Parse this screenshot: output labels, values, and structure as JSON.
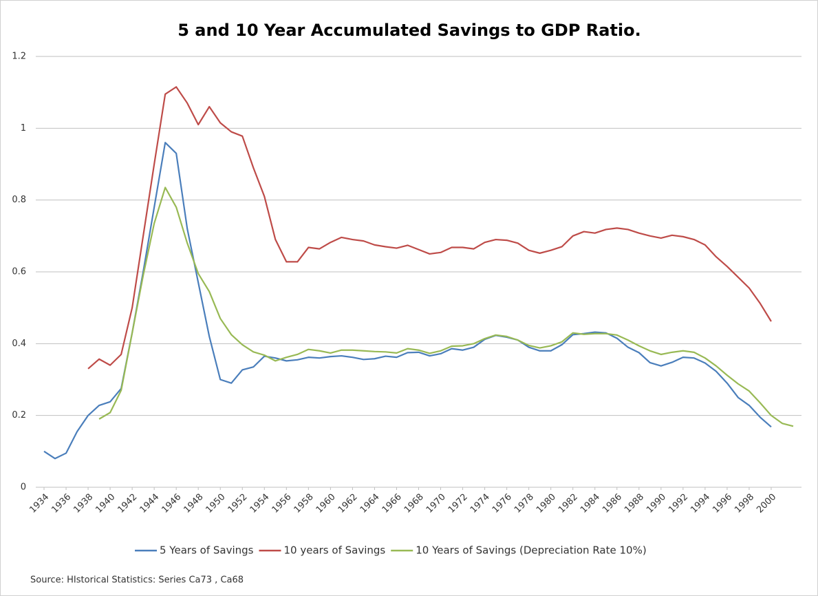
{
  "chart_data": {
    "type": "line",
    "title": "5 and 10 Year Accumulated Savings to GDP Ratio.",
    "source": "Source: HIstorical Statistics: Series Ca73 , Ca68",
    "x": [
      1934,
      1935,
      1936,
      1937,
      1938,
      1939,
      1940,
      1941,
      1942,
      1943,
      1944,
      1945,
      1946,
      1947,
      1948,
      1949,
      1950,
      1951,
      1952,
      1953,
      1954,
      1955,
      1956,
      1957,
      1958,
      1959,
      1960,
      1961,
      1962,
      1963,
      1964,
      1965,
      1966,
      1967,
      1968,
      1969,
      1970,
      1971,
      1972,
      1973,
      1974,
      1975,
      1976,
      1977,
      1978,
      1979,
      1980,
      1981,
      1982,
      1983,
      1984,
      1985,
      1986,
      1987,
      1988,
      1989,
      1990,
      1991,
      1992,
      1993,
      1994,
      1995,
      1996,
      1997,
      1998,
      1999,
      2000,
      2001,
      2002
    ],
    "xlim": [
      1933.25,
      2002.75
    ],
    "xticks": [
      1934,
      1936,
      1938,
      1940,
      1942,
      1944,
      1946,
      1948,
      1950,
      1952,
      1954,
      1956,
      1958,
      1960,
      1962,
      1964,
      1966,
      1968,
      1970,
      1972,
      1974,
      1976,
      1978,
      1980,
      1982,
      1984,
      1986,
      1988,
      1990,
      1992,
      1994,
      1996,
      1998,
      2000
    ],
    "ylim": [
      0,
      1.2
    ],
    "yticks": [
      0,
      0.2,
      0.4,
      0.6,
      0.8,
      1,
      1.2
    ],
    "grid": true,
    "legend": "bottom",
    "series": [
      {
        "name": "5 Years of Savings",
        "color": "#4a7ebb",
        "values": [
          0.1,
          0.08,
          0.095,
          0.155,
          0.2,
          0.228,
          0.238,
          0.275,
          0.43,
          0.6,
          0.78,
          0.96,
          0.93,
          0.72,
          0.57,
          0.42,
          0.3,
          0.29,
          0.327,
          0.335,
          0.365,
          0.36,
          0.352,
          0.355,
          0.362,
          0.36,
          0.364,
          0.366,
          0.362,
          0.356,
          0.358,
          0.365,
          0.362,
          0.375,
          0.376,
          0.366,
          0.372,
          0.386,
          0.382,
          0.39,
          0.412,
          0.423,
          0.418,
          0.41,
          0.39,
          0.38,
          0.38,
          0.397,
          0.425,
          0.428,
          0.432,
          0.43,
          0.415,
          0.39,
          0.375,
          0.347,
          0.338,
          0.348,
          0.362,
          0.36,
          0.346,
          0.323,
          0.29,
          0.25,
          0.228,
          0.195,
          0.168,
          null,
          null
        ]
      },
      {
        "name": "10 years of Savings",
        "color": "#be4b48",
        "values": [
          null,
          null,
          null,
          null,
          0.33,
          0.357,
          0.34,
          0.37,
          0.5,
          0.7,
          0.9,
          1.095,
          1.115,
          1.07,
          1.01,
          1.06,
          1.015,
          0.99,
          0.978,
          0.89,
          0.81,
          0.69,
          0.628,
          0.628,
          0.668,
          0.664,
          0.682,
          0.696,
          0.69,
          0.686,
          0.675,
          0.67,
          0.666,
          0.674,
          0.662,
          0.65,
          0.654,
          0.668,
          0.668,
          0.664,
          0.682,
          0.69,
          0.688,
          0.68,
          0.66,
          0.652,
          0.66,
          0.67,
          0.7,
          0.712,
          0.708,
          0.718,
          0.722,
          0.718,
          0.708,
          0.7,
          0.694,
          0.702,
          0.698,
          0.69,
          0.675,
          0.642,
          0.615,
          0.585,
          0.555,
          0.512,
          0.462,
          null,
          null
        ]
      },
      {
        "name": "10 Years of Savings (Depreciation Rate 10%)",
        "color": "#98b954",
        "values": [
          null,
          null,
          null,
          null,
          null,
          0.19,
          0.208,
          0.27,
          0.43,
          0.59,
          0.735,
          0.835,
          0.78,
          0.68,
          0.595,
          0.545,
          0.47,
          0.425,
          0.397,
          0.377,
          0.368,
          0.352,
          0.362,
          0.37,
          0.384,
          0.38,
          0.374,
          0.382,
          0.382,
          0.38,
          0.378,
          0.377,
          0.374,
          0.386,
          0.382,
          0.373,
          0.38,
          0.393,
          0.394,
          0.4,
          0.414,
          0.424,
          0.42,
          0.41,
          0.395,
          0.388,
          0.394,
          0.405,
          0.43,
          0.426,
          0.428,
          0.428,
          0.424,
          0.41,
          0.394,
          0.38,
          0.37,
          0.376,
          0.38,
          0.376,
          0.36,
          0.338,
          0.312,
          0.288,
          0.268,
          0.235,
          0.2,
          0.178,
          0.17
        ]
      }
    ]
  }
}
